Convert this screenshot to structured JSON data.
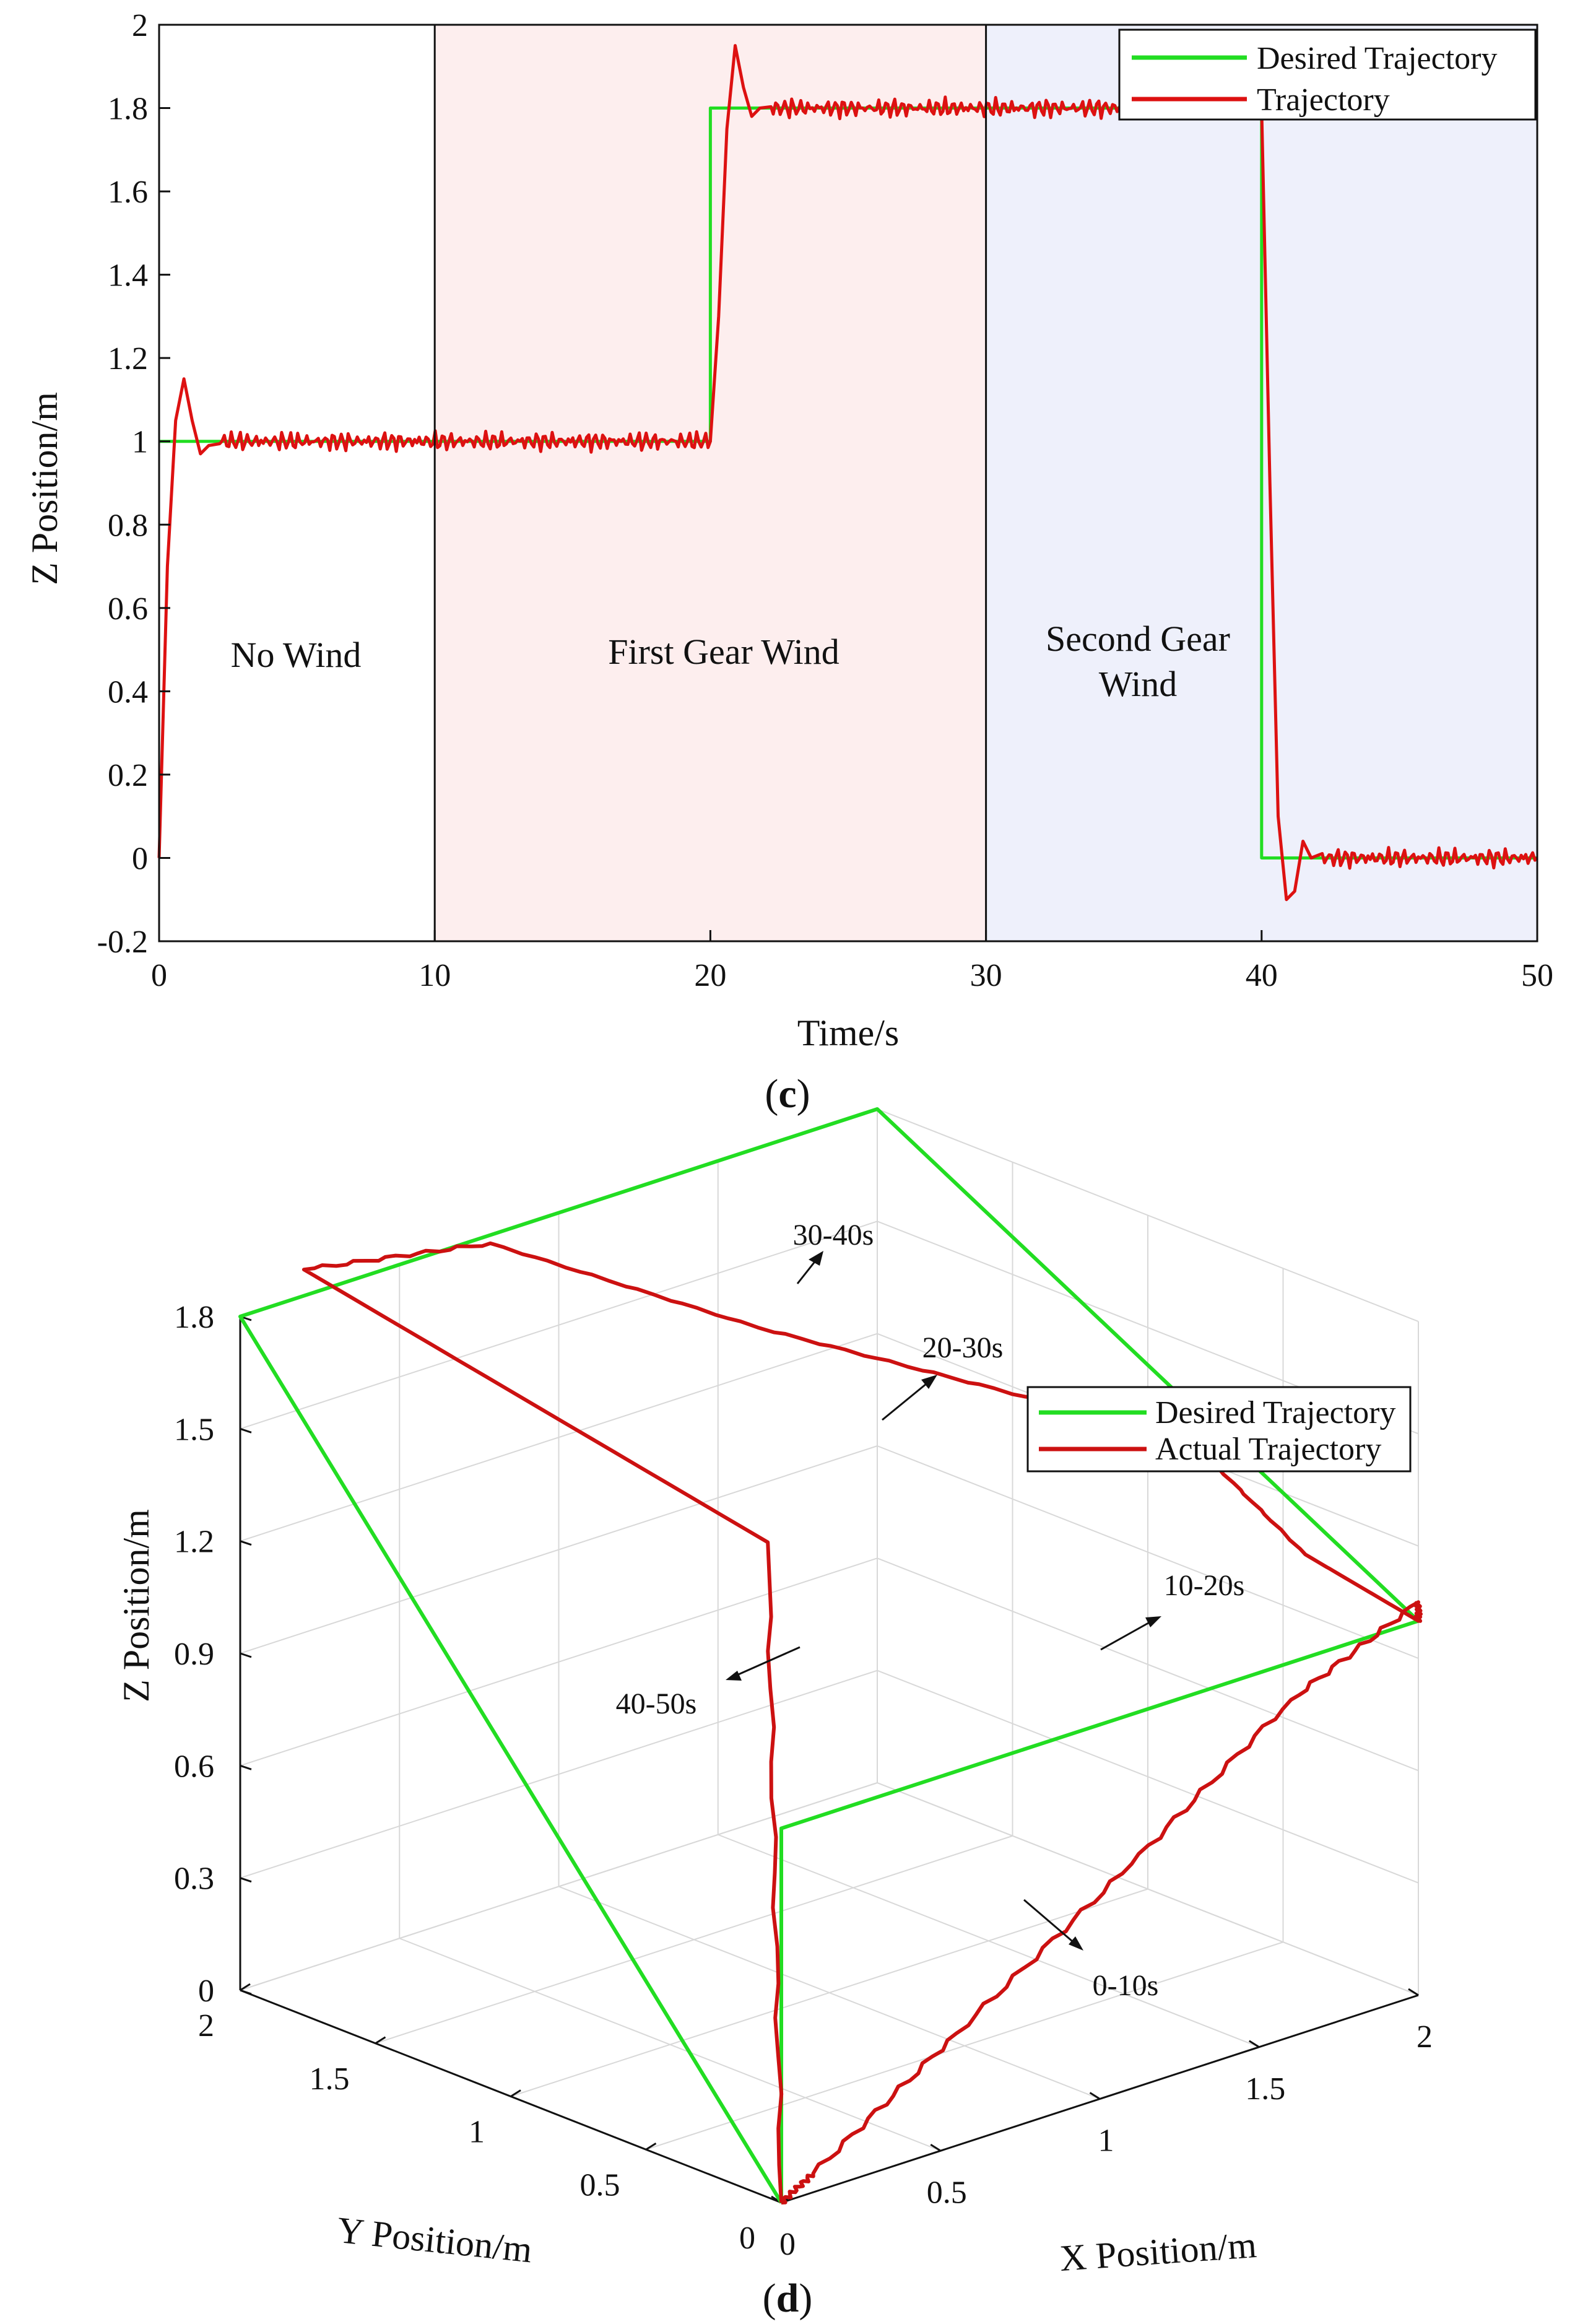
{
  "chart_data": [
    {
      "type": "line",
      "caption_letter": "c",
      "xlabel": "Time/s",
      "ylabel": "Z Position/m",
      "xlim": [
        0,
        50
      ],
      "ylim": [
        -0.2,
        2
      ],
      "xticks": [
        "0",
        "10",
        "20",
        "30",
        "40",
        "50"
      ],
      "yticks": [
        "-0.2",
        "0",
        "0.2",
        "0.4",
        "0.6",
        "0.8",
        "1",
        "1.2",
        "1.4",
        "1.6",
        "1.8",
        "2"
      ],
      "regions": [
        {
          "label": "No Wind",
          "x": [
            0,
            10
          ],
          "color": "#ffffff"
        },
        {
          "label": "First Gear Wind",
          "x": [
            10,
            30
          ],
          "color": "#fdeeee"
        },
        {
          "label": "Second Gear",
          "label2": "Wind",
          "x": [
            30,
            50
          ],
          "color": "#eef0fb"
        }
      ],
      "legend": {
        "position": "top-right",
        "entries": [
          "Desired Trajectory",
          "Trajectory"
        ]
      },
      "series": [
        {
          "name": "Desired Trajectory",
          "color": "#22dd22",
          "x": [
            0,
            20,
            20,
            40,
            40,
            50
          ],
          "y": [
            1,
            1,
            1.8,
            1.8,
            0,
            0
          ]
        },
        {
          "name": "Trajectory",
          "color": "#dd1111",
          "x": [
            0,
            0.3,
            0.6,
            0.9,
            1.2,
            1.5,
            1.8,
            2.2,
            20,
            20.3,
            20.6,
            20.9,
            21.2,
            21.5,
            21.8,
            22.2,
            40,
            40.3,
            40.6,
            40.9,
            41.2,
            41.5,
            41.8,
            42.2,
            50
          ],
          "y": [
            0,
            0.7,
            1.05,
            1.15,
            1.05,
            0.97,
            0.99,
            1.0,
            1.0,
            1.3,
            1.75,
            1.95,
            1.85,
            1.78,
            1.8,
            1.8,
            1.8,
            0.9,
            0.1,
            -0.1,
            -0.08,
            0.04,
            0.0,
            0.0,
            0.0
          ]
        }
      ]
    },
    {
      "type": "line3d",
      "caption_letter": "d",
      "xlabel": "X Position/m",
      "ylabel": "Y Position/m",
      "zlabel": "Z Position/m",
      "xticks": [
        "0",
        "0.5",
        "1",
        "1.5",
        "2"
      ],
      "yticks": [
        "0",
        "0.5",
        "1",
        "1.5",
        "2"
      ],
      "zticks": [
        "0",
        "0.3",
        "0.6",
        "0.9",
        "1.2",
        "1.5",
        "1.8"
      ],
      "legend": {
        "position": "top-right",
        "entries": [
          "Desired Trajectory",
          "Actual Trajectory"
        ]
      },
      "annotations": [
        "0-10s",
        "10-20s",
        "20-30s",
        "30-40s",
        "40-50s"
      ],
      "series": [
        {
          "name": "Desired Trajectory",
          "color": "#22dd22",
          "points": [
            [
              0,
              0,
              0
            ],
            [
              0,
              0,
              1
            ],
            [
              2,
              0,
              1
            ],
            [
              2,
              2,
              1.8
            ],
            [
              0,
              2,
              1.8
            ],
            [
              0,
              0,
              0
            ]
          ]
        },
        {
          "name": "Actual Trajectory",
          "color": "#cc1111",
          "points": [
            [
              0,
              0,
              0
            ],
            [
              0.1,
              0,
              0.05
            ],
            [
              0.55,
              0,
              0.3
            ],
            [
              1.1,
              0,
              0.6
            ],
            [
              1.6,
              0,
              0.9
            ],
            [
              2.0,
              0,
              1.05
            ],
            [
              2.0,
              0,
              1.0
            ],
            [
              1.9,
              0.3,
              1.12
            ],
            [
              1.95,
              0.8,
              1.28
            ],
            [
              1.7,
              1.1,
              1.37
            ],
            [
              1.2,
              1.5,
              1.58
            ],
            [
              0.7,
              1.9,
              1.83
            ],
            [
              0.2,
              2.0,
              1.87
            ],
            [
              0.0,
              0.05,
              1.75
            ],
            [
              0,
              0,
              0
            ]
          ]
        }
      ]
    }
  ]
}
